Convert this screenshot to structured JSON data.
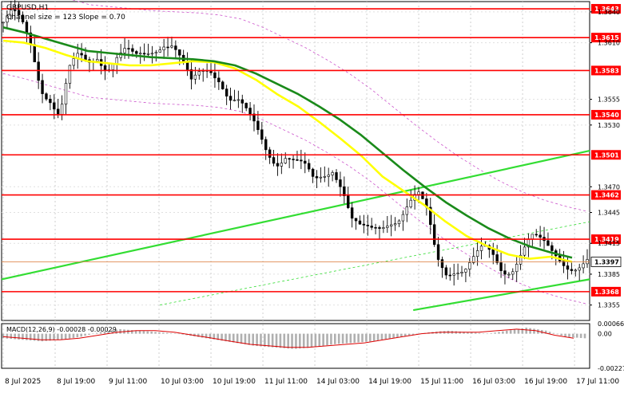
{
  "chart_data": [
    {
      "type": "candlestick",
      "symbol": "GBPUSD,H1",
      "indicator_note": "Channel size = 123 Slope = 0.70",
      "ylim": [
        1.334,
        1.365
      ],
      "y_ticks": [
        "1.3640",
        "1.3610",
        "1.3555",
        "1.3530",
        "1.3470",
        "1.3445",
        "1.3415",
        "1.3385",
        "1.3355"
      ],
      "levels": [
        {
          "label": "1.3643",
          "value": 1.3643
        },
        {
          "label": "1.3615",
          "value": 1.3615
        },
        {
          "label": "1.3583",
          "value": 1.3583
        },
        {
          "label": "1.3540",
          "value": 1.354
        },
        {
          "label": "1.3501",
          "value": 1.3501
        },
        {
          "label": "1.3462",
          "value": 1.3462
        },
        {
          "label": "1.3419",
          "value": 1.3419
        },
        {
          "label": "1.3368",
          "value": 1.3368
        }
      ],
      "current_price": {
        "label": "1.3397",
        "value": 1.3397
      },
      "x_labels": [
        "8 Jul 2025",
        "8 Jul 19:00",
        "9 Jul 11:00",
        "10 Jul 03:00",
        "10 Jul 19:00",
        "11 Jul 11:00",
        "14 Jul 03:00",
        "14 Jul 19:00",
        "15 Jul 11:00",
        "16 Jul 03:00",
        "16 Jul 19:00",
        "17 Jul 11:00"
      ],
      "close_path": [
        1.363,
        1.3636,
        1.3624,
        1.3605,
        1.357,
        1.356,
        1.354,
        1.358,
        1.3592,
        1.3588,
        1.36,
        1.359,
        1.3598,
        1.36,
        1.359,
        1.3595,
        1.3605,
        1.3615,
        1.3612,
        1.359,
        1.3565,
        1.3578,
        1.3585,
        1.358,
        1.356,
        1.3552,
        1.3535,
        1.352,
        1.3505,
        1.3498,
        1.3505,
        1.3495,
        1.3485,
        1.347,
        1.348,
        1.3492,
        1.3475,
        1.344,
        1.3425,
        1.3422,
        1.3428,
        1.344,
        1.3445,
        1.3455,
        1.346,
        1.344,
        1.34,
        1.339,
        1.3395,
        1.3392,
        1.3398,
        1.3405,
        1.34,
        1.339,
        1.3395,
        1.341,
        1.342,
        1.3412,
        1.3405,
        1.3402,
        1.3398,
        1.3396,
        1.3397
      ],
      "sma_fast": [
        1.3612,
        1.361,
        1.3605,
        1.3598,
        1.3592,
        1.359,
        1.3588,
        1.3588,
        1.359,
        1.3592,
        1.3591,
        1.3585,
        1.3574,
        1.356,
        1.3548,
        1.3533,
        1.3517,
        1.35,
        1.348,
        1.3466,
        1.3452,
        1.3436,
        1.3422,
        1.3412,
        1.3404,
        1.34,
        1.3402,
        1.3397
      ],
      "sma_slow": [
        1.3625,
        1.362,
        1.3614,
        1.3608,
        1.3602,
        1.36,
        1.3598,
        1.3596,
        1.3595,
        1.3594,
        1.3592,
        1.3588,
        1.358,
        1.357,
        1.356,
        1.3548,
        1.3535,
        1.352,
        1.3503,
        1.3486,
        1.347,
        1.3455,
        1.3442,
        1.343,
        1.342,
        1.3412,
        1.3406,
        1.3401
      ],
      "trend_lines": [
        {
          "from": [
            0.0,
            1.338
          ],
          "to": [
            1.0,
            1.3505
          ]
        },
        {
          "from": [
            0.7,
            1.335
          ],
          "to": [
            1.0,
            1.338
          ]
        }
      ],
      "colors": {
        "level": "#ff0000",
        "sma_fast": "#ffff00",
        "sma_slow": "#1a8a1a",
        "trend": "#33dd33",
        "envelope": "#cc55cc",
        "candle": "#000000",
        "price_tag": "#ffffff"
      }
    },
    {
      "type": "bar",
      "title": "MACD(12,26,9) -0.00028 -0.00029",
      "ylim": [
        -0.00227,
        0.00066
      ],
      "y_ticks": [
        "0.00066",
        "0.00",
        "-0.00227"
      ],
      "histogram": [
        -0.0003,
        -0.0004,
        -0.0005,
        -0.0004,
        -0.0002,
        0.0001,
        0.0003,
        0.0002,
        0.0001,
        0.0,
        -0.0002,
        -0.0004,
        -0.0006,
        -0.0008,
        -0.0009,
        -0.001,
        -0.0009,
        -0.0007,
        -0.0006,
        -0.0005,
        -0.0003,
        -0.0001,
        0.0001,
        0.0002,
        0.0001,
        0.0,
        0.0002,
        0.0004,
        0.0002,
        -0.0002,
        -0.0003
      ],
      "signal": [
        -0.0002,
        -0.0003,
        -0.0004,
        -0.0004,
        -0.0003,
        -0.0001,
        0.0001,
        0.0002,
        0.0002,
        0.0001,
        -0.0001,
        -0.0003,
        -0.0005,
        -0.0007,
        -0.0008,
        -0.0009,
        -0.0009,
        -0.0008,
        -0.0007,
        -0.0006,
        -0.0004,
        -0.0002,
        0.0,
        0.0001,
        0.0001,
        0.0001,
        0.0002,
        0.0003,
        0.0002,
        -0.0001,
        -0.0003
      ],
      "colors": {
        "histogram": "#b0b0b0",
        "signal": "#dd0000"
      }
    }
  ]
}
